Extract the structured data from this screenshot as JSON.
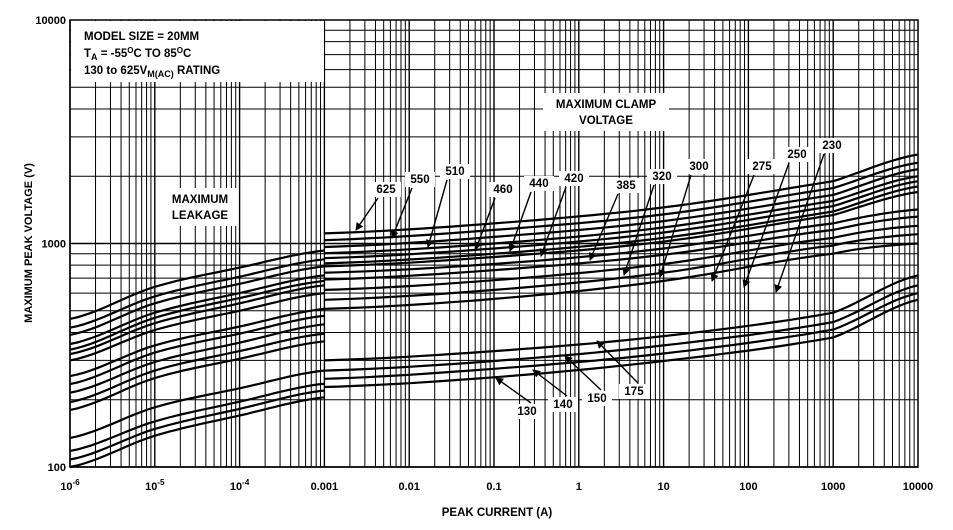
{
  "chart_data": {
    "type": "line",
    "xlabel": "PEAK CURRENT (A)",
    "ylabel": "MAXIMUM PEAK VOLTAGE (V)",
    "xscale": "log",
    "yscale": "log",
    "xlim": [
      1e-06,
      10000
    ],
    "ylim": [
      100,
      10000
    ],
    "grid": true,
    "x_ticks": [
      {
        "base": "10",
        "exp": "-6"
      },
      {
        "base": "10",
        "exp": "-5"
      },
      {
        "base": "10",
        "exp": "-4"
      },
      {
        "base": "0.001",
        "exp": ""
      },
      {
        "base": "0.01",
        "exp": ""
      },
      {
        "base": "0.1",
        "exp": ""
      },
      {
        "base": "1",
        "exp": ""
      },
      {
        "base": "10",
        "exp": ""
      },
      {
        "base": "100",
        "exp": ""
      },
      {
        "base": "1000",
        "exp": ""
      },
      {
        "base": "10000",
        "exp": ""
      }
    ],
    "y_ticks": [
      "100",
      "1000",
      "10000"
    ],
    "info_box": {
      "line1": "MODEL SIZE = 20MM",
      "line2_a": "T",
      "line2_sub": "A",
      "line2_b": " = -55",
      "line2_sup1": "O",
      "line2_c": "C TO 85",
      "line2_sup2": "O",
      "line2_d": "C",
      "line3_a": "130 to 625V",
      "line3_sub": "M(AC)",
      "line3_b": " RATING"
    },
    "annotations": {
      "leakage": [
        "MAXIMUM",
        "LEAKAGE"
      ],
      "clamp": [
        "MAXIMUM CLAMP",
        "VOLTAGE"
      ]
    },
    "leakage_x": [
      1e-06,
      1e-05,
      0.0001,
      0.001
    ],
    "clamp_x": [
      0.001,
      0.1,
      10,
      1000,
      10000
    ],
    "series": [
      {
        "name": "625",
        "leakage": [
          460,
          640,
          780,
          930
        ],
        "clamp": [
          1110,
          1230,
          1450,
          1900,
          2500
        ]
      },
      {
        "name": "550",
        "leakage": [
          420,
          580,
          710,
          850
        ],
        "clamp": [
          1035,
          1150,
          1350,
          1770,
          2300
        ]
      },
      {
        "name": "510",
        "leakage": [
          390,
          540,
          660,
          790
        ],
        "clamp": [
          965,
          1070,
          1260,
          1650,
          2150
        ]
      },
      {
        "name": "460",
        "leakage": [
          355,
          490,
          600,
          720
        ],
        "clamp": [
          905,
          1000,
          1180,
          1550,
          2000
        ]
      },
      {
        "name": "440",
        "leakage": [
          335,
          465,
          570,
          680
        ],
        "clamp": [
          860,
          950,
          1120,
          1470,
          1900
        ]
      },
      {
        "name": "420",
        "leakage": [
          320,
          440,
          540,
          650
        ],
        "clamp": [
          815,
          900,
          1060,
          1390,
          1800
        ]
      },
      {
        "name": "385",
        "leakage": [
          300,
          410,
          500,
          600
        ],
        "clamp": [
          790,
          870,
          1020,
          1340,
          1700
        ]
      },
      {
        "name": "320",
        "leakage": [
          255,
          350,
          425,
          510
        ],
        "clamp": [
          740,
          810,
          950,
          1230,
          1420
        ]
      },
      {
        "name": "300",
        "leakage": [
          235,
          325,
          395,
          475
        ],
        "clamp": [
          690,
          760,
          890,
          1150,
          1320
        ]
      },
      {
        "name": "275",
        "leakage": [
          215,
          295,
          360,
          435
        ],
        "clamp": [
          620,
          685,
          810,
          1060,
          1200
        ]
      },
      {
        "name": "250",
        "leakage": [
          195,
          270,
          330,
          395
        ],
        "clamp": [
          560,
          620,
          740,
          980,
          1100
        ]
      },
      {
        "name": "230",
        "leakage": [
          180,
          250,
          305,
          365
        ],
        "clamp": [
          510,
          565,
          680,
          900,
          1000
        ]
      },
      {
        "name": "175",
        "leakage": [
          135,
          185,
          225,
          270
        ],
        "clamp": [
          300,
          330,
          385,
          490,
          720
        ]
      },
      {
        "name": "150",
        "leakage": [
          118,
          160,
          196,
          236
        ],
        "clamp": [
          270,
          298,
          350,
          445,
          650
        ]
      },
      {
        "name": "140",
        "leakage": [
          108,
          148,
          182,
          220
        ],
        "clamp": [
          248,
          275,
          322,
          412,
          600
        ]
      },
      {
        "name": "130",
        "leakage": [
          100,
          138,
          170,
          205
        ],
        "clamp": [
          228,
          252,
          298,
          380,
          560
        ]
      }
    ]
  }
}
